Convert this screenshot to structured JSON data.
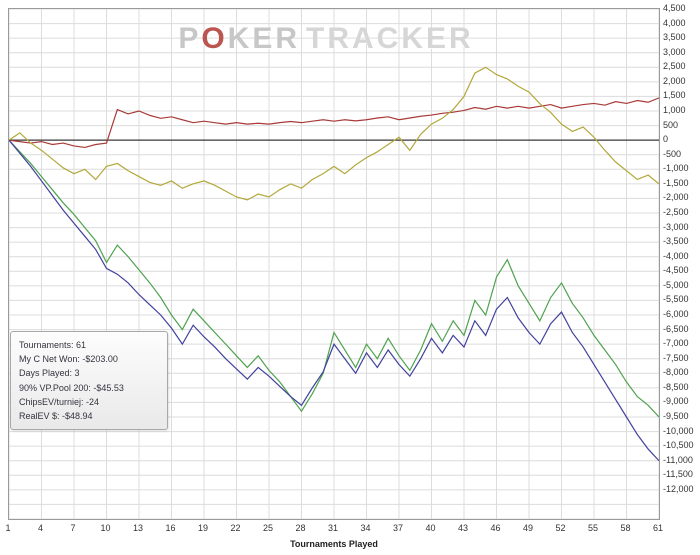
{
  "watermark": {
    "p": "P",
    "o": "O",
    "ker": "KER",
    "tracker": "TRACKER"
  },
  "stats_box": {
    "lines": [
      "Tournaments: 61",
      "My C Net Won: -$203.00",
      "Days Played: 3",
      "90% VP.Pool 200: -$45.53",
      "ChipsEV/turniej: -24",
      "RealEV $: -$48.94"
    ]
  },
  "chart_data": {
    "type": "line",
    "title": "",
    "xlabel": "Tournaments Played",
    "ylabel": "",
    "grid": true,
    "legend_position": "none",
    "x_range": [
      1,
      61
    ],
    "ylim": [
      -13000,
      4500
    ],
    "grid_step": 500,
    "zero_line_color": "#383838",
    "grid_color": "#dcdcdc",
    "x_ticks": [
      1,
      4,
      7,
      10,
      13,
      16,
      19,
      22,
      25,
      28,
      31,
      34,
      37,
      40,
      43,
      46,
      49,
      52,
      55,
      58,
      61
    ],
    "y_ticks": [
      4500,
      4000,
      3500,
      3000,
      2500,
      2000,
      1500,
      1000,
      500,
      0,
      -500,
      -1000,
      -1500,
      -2000,
      -2500,
      -3000,
      -3500,
      -4000,
      -4500,
      -5000,
      -5500,
      -6000,
      -6500,
      -7000,
      -7500,
      -8000,
      -8500,
      -9000,
      -9500,
      -10000,
      -10500,
      -11000,
      -11500,
      -12000
    ],
    "series": [
      {
        "name": "red",
        "color": "#a83a38",
        "values": [
          0,
          -50,
          -100,
          -50,
          -150,
          -100,
          -200,
          -250,
          -150,
          -100,
          1050,
          900,
          1000,
          850,
          750,
          800,
          700,
          600,
          650,
          600,
          550,
          600,
          550,
          580,
          550,
          600,
          640,
          600,
          650,
          700,
          650,
          700,
          660,
          700,
          760,
          800,
          700,
          760,
          820,
          860,
          920,
          960,
          1020,
          1120,
          1060,
          1160,
          1100,
          1160,
          1100,
          1160,
          1220,
          1100,
          1160,
          1220,
          1260,
          1200,
          1320,
          1260,
          1360,
          1300,
          1450
        ]
      },
      {
        "name": "yellow",
        "color": "#b3a83b",
        "values": [
          0,
          250,
          -100,
          -350,
          -650,
          -950,
          -1150,
          -1000,
          -1350,
          -900,
          -800,
          -1050,
          -1250,
          -1450,
          -1550,
          -1400,
          -1650,
          -1500,
          -1400,
          -1550,
          -1750,
          -1950,
          -2050,
          -1850,
          -1950,
          -1700,
          -1500,
          -1650,
          -1350,
          -1150,
          -900,
          -1150,
          -850,
          -600,
          -400,
          -150,
          100,
          -350,
          200,
          550,
          750,
          1050,
          1500,
          2300,
          2500,
          2250,
          2100,
          1850,
          1650,
          1250,
          950,
          550,
          300,
          450,
          100,
          -350,
          -750,
          -1050,
          -1350,
          -1200,
          -1500
        ]
      },
      {
        "name": "green",
        "color": "#4fa24f",
        "values": [
          0,
          -400,
          -800,
          -1250,
          -1700,
          -2150,
          -2550,
          -3000,
          -3450,
          -4200,
          -3600,
          -4000,
          -4450,
          -4900,
          -5400,
          -6000,
          -6500,
          -5800,
          -6200,
          -6600,
          -7000,
          -7400,
          -7800,
          -7400,
          -7900,
          -8300,
          -8800,
          -9300,
          -8700,
          -8000,
          -6600,
          -7200,
          -7800,
          -7000,
          -7500,
          -6800,
          -7400,
          -7900,
          -7200,
          -6300,
          -6900,
          -6200,
          -6700,
          -5500,
          -6000,
          -4700,
          -4100,
          -5000,
          -5600,
          -6200,
          -5400,
          -4900,
          -5600,
          -6100,
          -6700,
          -7200,
          -7700,
          -8300,
          -8800,
          -9100,
          -9500
        ]
      },
      {
        "name": "blue",
        "color": "#41419f",
        "values": [
          0,
          -450,
          -900,
          -1400,
          -1900,
          -2400,
          -2850,
          -3300,
          -3750,
          -4400,
          -4600,
          -4900,
          -5300,
          -5650,
          -6000,
          -6450,
          -7000,
          -6350,
          -6750,
          -7100,
          -7500,
          -7850,
          -8200,
          -7800,
          -8100,
          -8450,
          -8800,
          -9100,
          -8500,
          -7950,
          -7000,
          -7500,
          -8000,
          -7300,
          -7800,
          -7200,
          -7700,
          -8100,
          -7500,
          -6800,
          -7300,
          -6700,
          -7100,
          -6200,
          -6700,
          -5800,
          -5400,
          -6100,
          -6600,
          -7000,
          -6300,
          -5900,
          -6600,
          -7100,
          -7700,
          -8300,
          -8900,
          -9500,
          -10100,
          -10600,
          -11000
        ]
      }
    ]
  }
}
